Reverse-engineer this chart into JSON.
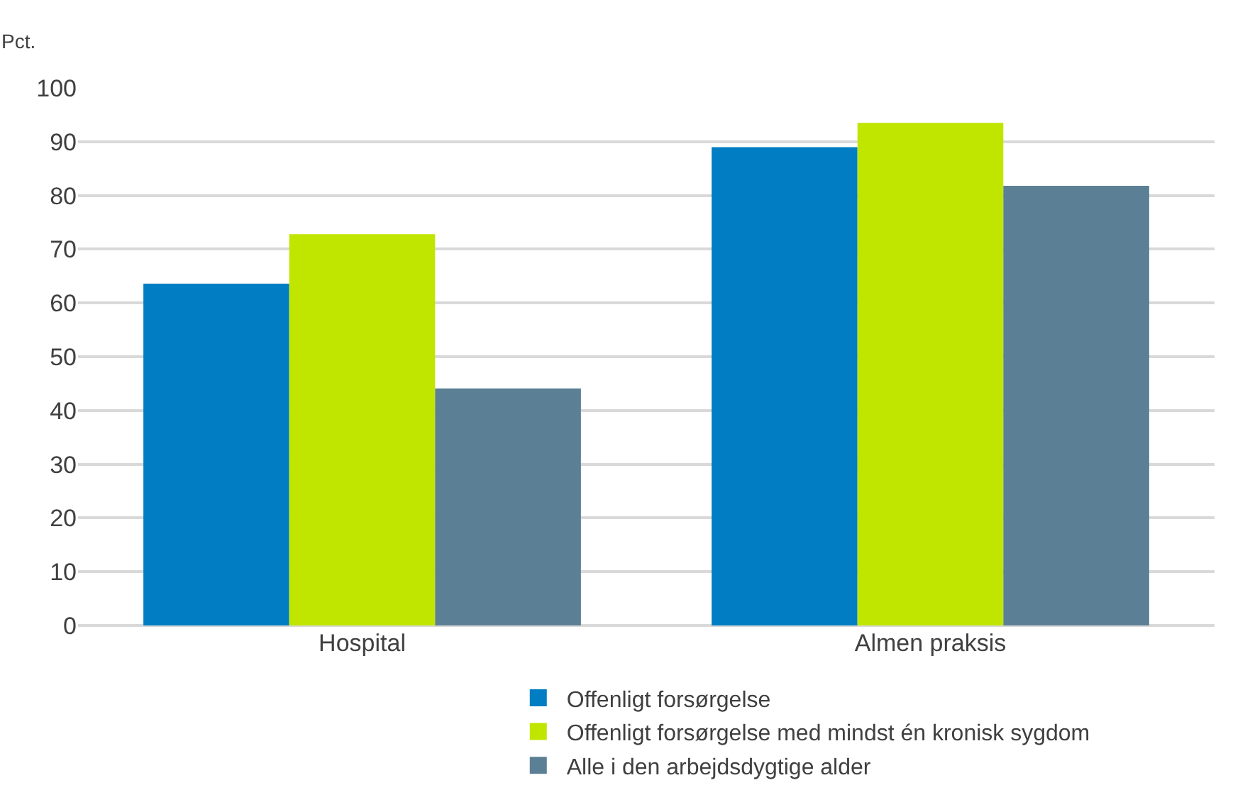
{
  "chart_data": {
    "type": "bar",
    "ylabel": "Pct.",
    "categories": [
      "Hospital",
      "Almen praksis"
    ],
    "series": [
      {
        "name": "Offenligt forsørgelse",
        "color": "#007dc3",
        "values": [
          63.6,
          89.0
        ]
      },
      {
        "name": "Offenligt forsørgelse med mindst én kronisk sygdom",
        "color": "#c0e600",
        "values": [
          72.8,
          93.5
        ]
      },
      {
        "name": "Alle i den arbejdsdygtige alder",
        "color": "#5b7f95",
        "values": [
          44.1,
          81.8
        ]
      }
    ],
    "ylim": [
      0,
      100
    ],
    "yticks": [
      0,
      10,
      20,
      30,
      40,
      50,
      60,
      70,
      80,
      90,
      100
    ],
    "grid": "y",
    "legend": "bottom"
  }
}
